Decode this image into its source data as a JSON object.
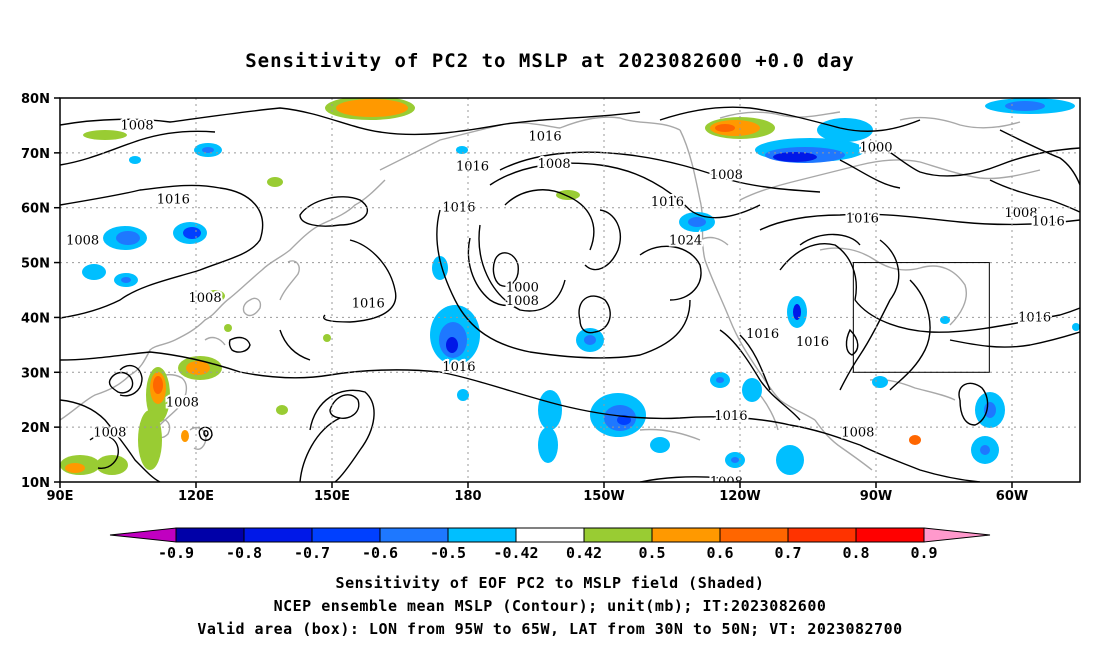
{
  "title": "Sensitivity of PC2 to MSLP at 2023082600 +0.0 day",
  "map": {
    "lon_ticks": [
      "90E",
      "120E",
      "150E",
      "180",
      "150W",
      "120W",
      "90W",
      "60W"
    ],
    "lat_ticks": [
      "10N",
      "20N",
      "30N",
      "40N",
      "50N",
      "60N",
      "70N",
      "80N"
    ],
    "box": {
      "lon_west": "95W",
      "lon_east": "65W",
      "lat_south": "30N",
      "lat_north": "50N"
    },
    "contour_labels": [
      {
        "text": "1008",
        "lon": 107,
        "lat": 75
      },
      {
        "text": "1016",
        "lon": 197,
        "lat": 73
      },
      {
        "text": "1008",
        "lon": 199,
        "lat": 68
      },
      {
        "text": "1016",
        "lon": 181,
        "lat": 67.5
      },
      {
        "text": "1008",
        "lon": 237,
        "lat": 66
      },
      {
        "text": "1016",
        "lon": 224,
        "lat": 61
      },
      {
        "text": "1016",
        "lon": 115,
        "lat": 61.5
      },
      {
        "text": "1016",
        "lon": 178,
        "lat": 60
      },
      {
        "text": "1000",
        "lon": 270,
        "lat": 71
      },
      {
        "text": "1016",
        "lon": 267,
        "lat": 58
      },
      {
        "text": "1008",
        "lon": 302,
        "lat": 59
      },
      {
        "text": "1016",
        "lon": 308,
        "lat": 57.5
      },
      {
        "text": "1008",
        "lon": 95,
        "lat": 54
      },
      {
        "text": "1024",
        "lon": 228,
        "lat": 54
      },
      {
        "text": "1000",
        "lon": 192,
        "lat": 45.5
      },
      {
        "text": "1008",
        "lon": 192,
        "lat": 43
      },
      {
        "text": "1008",
        "lon": 122,
        "lat": 43.5
      },
      {
        "text": "1016",
        "lon": 158,
        "lat": 42.5
      },
      {
        "text": "1016",
        "lon": 245,
        "lat": 37
      },
      {
        "text": "1016",
        "lon": 256,
        "lat": 35.5
      },
      {
        "text": "1016",
        "lon": 305,
        "lat": 40
      },
      {
        "text": "1016",
        "lon": 178,
        "lat": 31
      },
      {
        "text": "1008",
        "lon": 117,
        "lat": 24.5
      },
      {
        "text": "1016",
        "lon": 238,
        "lat": 22
      },
      {
        "text": "1008",
        "lon": 101,
        "lat": 19
      },
      {
        "text": "1008",
        "lon": 266,
        "lat": 19
      },
      {
        "text": "1008",
        "lon": 237,
        "lat": 10
      }
    ]
  },
  "colorbar": {
    "labels": [
      "-0.9",
      "-0.8",
      "-0.7",
      "-0.6",
      "-0.5",
      "-0.42",
      "0.42",
      "0.5",
      "0.6",
      "0.7",
      "0.8",
      "0.9"
    ],
    "colors": [
      "#c000c0",
      "#0000a8",
      "#0018e8",
      "#0040ff",
      "#1e78ff",
      "#00bfff",
      "#ffffff",
      "#99cc33",
      "#ff9900",
      "#ff6600",
      "#ff3300",
      "#ff0000",
      "#ff99cc"
    ]
  },
  "caption": {
    "line1": "Sensitivity of EOF PC2 to MSLP field (Shaded)",
    "line2": "NCEP ensemble mean MSLP (Contour); unit(mb); IT:2023082600",
    "line3": "Valid area (box): LON from 95W to 65W, LAT from 30N to 50N; VT: 2023082700"
  }
}
